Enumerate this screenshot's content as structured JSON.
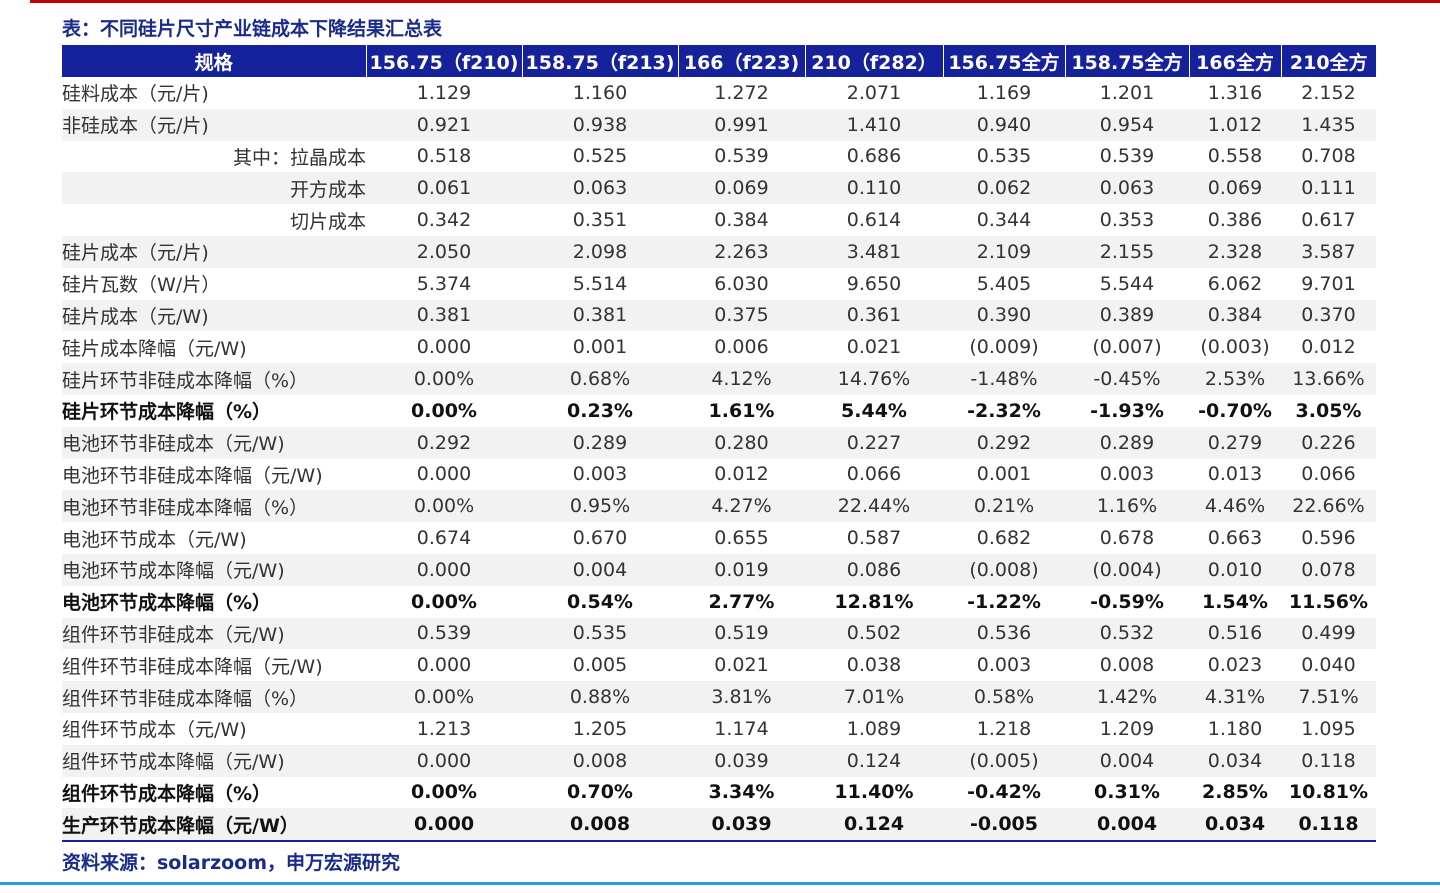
{
  "title": "表：不同硅片尺寸产业链成本下降结果汇总表",
  "source": "资料来源：solarzoom，申万宏源研究",
  "colors": {
    "header_bg": "#16229c",
    "title_text": "#1a2b8a",
    "top_rule": "#c00000",
    "bottom_rule": "#2a9fd6",
    "stripe": "#f2f2f2"
  },
  "table": {
    "headers": [
      "规格",
      "156.75（f210)",
      "158.75（f213)",
      "166（f223)",
      "210（f282）",
      "156.75全方",
      "158.75全方",
      "166全方",
      "210全方"
    ],
    "rows": [
      {
        "label": "硅料成本（元/片)",
        "values": [
          "1.129",
          "1.160",
          "1.272",
          "2.071",
          "1.169",
          "1.201",
          "1.316",
          "2.152"
        ]
      },
      {
        "label": "非硅成本（元/片)",
        "values": [
          "0.921",
          "0.938",
          "0.991",
          "1.410",
          "0.940",
          "0.954",
          "1.012",
          "1.435"
        ]
      },
      {
        "label": "其中：拉晶成本",
        "values": [
          "0.518",
          "0.525",
          "0.539",
          "0.686",
          "0.535",
          "0.539",
          "0.558",
          "0.708"
        ]
      },
      {
        "label": "开方成本",
        "values": [
          "0.061",
          "0.063",
          "0.069",
          "0.110",
          "0.062",
          "0.063",
          "0.069",
          "0.111"
        ]
      },
      {
        "label": "切片成本",
        "values": [
          "0.342",
          "0.351",
          "0.384",
          "0.614",
          "0.344",
          "0.353",
          "0.386",
          "0.617"
        ]
      },
      {
        "label": "硅片成本（元/片)",
        "values": [
          "2.050",
          "2.098",
          "2.263",
          "3.481",
          "2.109",
          "2.155",
          "2.328",
          "3.587"
        ]
      },
      {
        "label": "硅片瓦数（W/片）",
        "values": [
          "5.374",
          "5.514",
          "6.030",
          "9.650",
          "5.405",
          "5.544",
          "6.062",
          "9.701"
        ]
      },
      {
        "label": "硅片成本（元/W)",
        "values": [
          "0.381",
          "0.381",
          "0.375",
          "0.361",
          "0.390",
          "0.389",
          "0.384",
          "0.370"
        ]
      },
      {
        "label": "硅片成本降幅（元/W)",
        "values": [
          "0.000",
          "0.001",
          "0.006",
          "0.021",
          "(0.009)",
          "(0.007)",
          "(0.003)",
          "0.012"
        ]
      },
      {
        "label": "硅片环节非硅成本降幅（%）",
        "values": [
          "0.00%",
          "0.68%",
          "4.12%",
          "14.76%",
          "-1.48%",
          "-0.45%",
          "2.53%",
          "13.66%"
        ]
      },
      {
        "label": "硅片环节成本降幅（%）",
        "values": [
          "0.00%",
          "0.23%",
          "1.61%",
          "5.44%",
          "-2.32%",
          "-1.93%",
          "-0.70%",
          "3.05%"
        ]
      },
      {
        "label": "电池环节非硅成本（元/W)",
        "values": [
          "0.292",
          "0.289",
          "0.280",
          "0.227",
          "0.292",
          "0.289",
          "0.279",
          "0.226"
        ]
      },
      {
        "label": "电池环节非硅成本降幅（元/W)",
        "values": [
          "0.000",
          "0.003",
          "0.012",
          "0.066",
          "0.001",
          "0.003",
          "0.013",
          "0.066"
        ]
      },
      {
        "label": "电池环节非硅成本降幅（%）",
        "values": [
          "0.00%",
          "0.95%",
          "4.27%",
          "22.44%",
          "0.21%",
          "1.16%",
          "4.46%",
          "22.66%"
        ]
      },
      {
        "label": "电池环节成本（元/W)",
        "values": [
          "0.674",
          "0.670",
          "0.655",
          "0.587",
          "0.682",
          "0.678",
          "0.663",
          "0.596"
        ]
      },
      {
        "label": "电池环节成本降幅（元/W)",
        "values": [
          "0.000",
          "0.004",
          "0.019",
          "0.086",
          "(0.008)",
          "(0.004)",
          "0.010",
          "0.078"
        ]
      },
      {
        "label": "电池环节成本降幅（%）",
        "values": [
          "0.00%",
          "0.54%",
          "2.77%",
          "12.81%",
          "-1.22%",
          "-0.59%",
          "1.54%",
          "11.56%"
        ]
      },
      {
        "label": "组件环节非硅成本（元/W)",
        "values": [
          "0.539",
          "0.535",
          "0.519",
          "0.502",
          "0.536",
          "0.532",
          "0.516",
          "0.499"
        ]
      },
      {
        "label": "组件环节非硅成本降幅（元/W)",
        "values": [
          "0.000",
          "0.005",
          "0.021",
          "0.038",
          "0.003",
          "0.008",
          "0.023",
          "0.040"
        ]
      },
      {
        "label": "组件环节非硅成本降幅（%）",
        "values": [
          "0.00%",
          "0.88%",
          "3.81%",
          "7.01%",
          "0.58%",
          "1.42%",
          "4.31%",
          "7.51%"
        ]
      },
      {
        "label": "组件环节成本（元/W)",
        "values": [
          "1.213",
          "1.205",
          "1.174",
          "1.089",
          "1.218",
          "1.209",
          "1.180",
          "1.095"
        ]
      },
      {
        "label": "组件环节成本降幅（元/W)",
        "values": [
          "0.000",
          "0.008",
          "0.039",
          "0.124",
          "(0.005)",
          "0.004",
          "0.034",
          "0.118"
        ]
      },
      {
        "label": "组件环节成本降幅（%）",
        "values": [
          "0.00%",
          "0.70%",
          "3.34%",
          "11.40%",
          "-0.42%",
          "0.31%",
          "2.85%",
          "10.81%"
        ]
      },
      {
        "label": "生产环节成本降幅（元/W）",
        "values": [
          "0.000",
          "0.008",
          "0.039",
          "0.124",
          "-0.005",
          "0.004",
          "0.034",
          "0.118"
        ]
      }
    ]
  }
}
